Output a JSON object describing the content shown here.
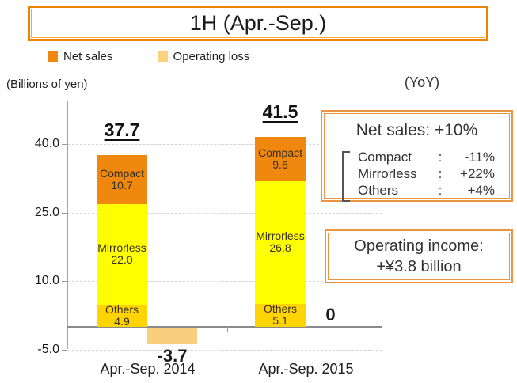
{
  "title": "1H (Apr.-Sep.)",
  "colon": ":",
  "legend": [
    {
      "label": "Net sales",
      "color": "#F0870F"
    },
    {
      "label": "Operating loss",
      "color": "#FAD27C"
    }
  ],
  "axis_note_left": "(Billions of yen)",
  "axis_note_right": "(YoY)",
  "chart_data": {
    "type": "bar",
    "subtype": "stacked",
    "title": "1H (Apr.-Sep.)",
    "ylabel": "(Billions of yen)",
    "categories": [
      "Apr.-Sep. 2014",
      "Apr.-Sep. 2015"
    ],
    "series": [
      {
        "name": "Others",
        "values": [
          4.9,
          5.1
        ],
        "color": "#FFD400"
      },
      {
        "name": "Mirrorless",
        "values": [
          22.0,
          26.8
        ],
        "color": "#FFFF00"
      },
      {
        "name": "Compact",
        "values": [
          10.7,
          9.6
        ],
        "color": "#F0870F"
      }
    ],
    "totals": [
      "37.7",
      "41.5"
    ],
    "operating_loss": {
      "name": "Operating loss",
      "values": [
        -3.7,
        0
      ],
      "labels": [
        "-3.7",
        "0"
      ],
      "color": "#F9CF7D"
    },
    "yticks": [
      40.0,
      25.0,
      10.0,
      -5.0
    ],
    "ylim": [
      -7,
      49
    ],
    "grid": "dashed-horizontal",
    "legend_position": "top-left"
  },
  "panels": {
    "net_sales": {
      "title": "Net sales: +10%",
      "items": [
        {
          "name": "Compact",
          "value": "-11%"
        },
        {
          "name": "Mirrorless",
          "value": "+22%"
        },
        {
          "name": "Others",
          "value": "+4%"
        }
      ]
    },
    "operating_income": {
      "line1": "Operating income:",
      "line2": "+¥3.8 billion"
    }
  }
}
